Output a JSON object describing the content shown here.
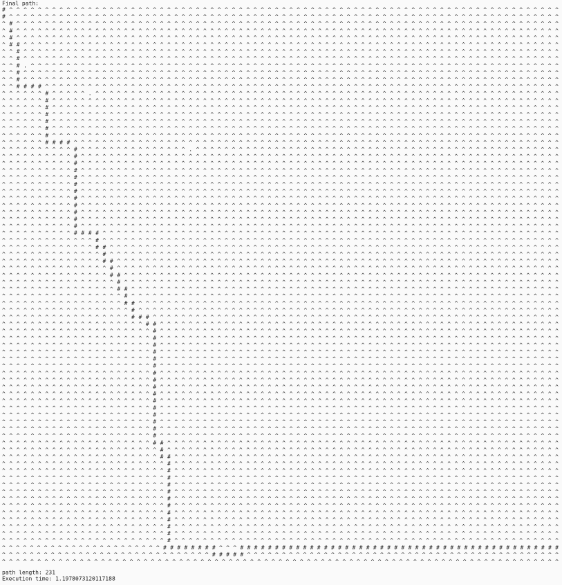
{
  "header": {
    "title": "Final path:"
  },
  "grid": {
    "rows": [
      "#^^^^^^^^^^^^^^^^^^^^^^^^^^^^^^^^^^^^^^^^^^^^^^^^^^^^^^^^^^^^^^^^^^^^^^^^^^^^^",
      "#^^^^^^^^^^^^^^^^^^^^^^^^^^^^^^^^^^^^^^^^^^^^^^^^^^^^^^^^^^^^^^^^^^^^^^^^^^^^^",
      "^#^^^^^^^^^^^^^^^^^^^^^^^^^^^^^^^^^^^^^^^^^^^^^^^^^^^^^^^^^^^^^^^^^^^^^^^^^^^^",
      "^#^^^^^^^^^^^^^^^^^^^^^^^^^^^^^^^^^^^^^^^^^^^^^^^^^^^^^^^^^^^^^^^^^^^^^^^^^^^^",
      "^#^^^^^^^^^^^^^^^^^^^^^^^^^^^^^^^^^^^^^^^^^^^^^^^^^^^^^^^^^^^^^^^^^^^^^^^^^^^^",
      "^##^^^^^^^^^^^^^^^^^^^^^^^^^^^^^^^^^^^^^^^^^^^^^^^^^^^^^^^^^^^^^^^^^^^^^^^^^^^",
      "^^#^^^^^^^^^^^^^^^^^^^^^^^^^^^^^^^^^^^^^^^^^^^^^^^^^^^^^^^^^^^^^^^^^^^^^^^^^^^",
      "^^#^^^^^^^^^^^^^^^^^^^^^^^^^^^^^^^^^^^^^^^^^^^^^^^^^^^^^^^^^^^^^^^^^^^^^^^^^^^",
      "^^#.^^^^^^^^^^^^^^^^^^^^^^^^^^^^^^^^^^^^^^^^^^^^^^^^^^^^^^^^^^^^^^^^^^^^^^^^^^",
      "^^#^^^^^^^^^^^^^^^^^^^^^^^^^^^^^^^^^^^^^^^^^^^^^^^^^^^^^^^^^^^^^^^^^^^^^^^^^^^",
      "^^#^^^^^^^^^^^^^^^^^^^^^^^^^^^^^^^^^^^^^^^^^^^^^^^^^^^^^^^^^^^^^^^^^^^^^^^^^^^",
      "^^####^^^^^^^^^^^^^^^^^^^^^^^^^^^^^^^^^^^^^^^^^^^^^^^^^^^^^^^^^^^^^^^^^^^^^^^^",
      "^^^^^^#^^^^^.^^^^^^^^^^^^^^^^^^^^^^^^^^^^^^^^^^^^^^^^^^^^^^^^^^^^^^^^^^^^^^^^^",
      "^^^^^^#^^^^^^^^^^^^^^^^^^^^^^^^^^^^^^^^^^^^^^^^^^^^^^^^^^^^^^^^^^^^^^^^^^^^^^^",
      "^^^^^^#^^^^^^^^^^^^^^^^^^^^^^^^^^^^^^^^^^^^^^^^^^^^^^^^^^^^^^^^^^^^^^^^^^^^^^^",
      "^^^^^^#^^^^^^^^^^^^^^^^^^^^^^^^^^^^^^^^^^^^^^^^^^^^^^^^^^^^^^^^^^^^^^^^^^^^^^^",
      "^^^^^^#^^^^^^^^^^^^^^^^^^^^^^^^^^^^^^^^^^^^^^^^^^^^^^^^^^^^^^^^^^^^^^^^^^^^^^^",
      "^^^^^^#^^^^^^^^^^^^^^^^^^^^^^^^^^^^^^^^^^^^^^^^^^^^^^^^^^^^^^^^^^^^^^^^^^^^^^^",
      "^^^^^^#^^^^^^^^^^^^^^^^^^^^^^^^^^^^^^^^^^^^^^^^^^^^^^^^^^^^^^^^^^^^^^^^^^^^^^^",
      "^^^^^^####^^^^^^^^^^^^^^^^^^^^^^^^^^^^^^^^^^^^^^^^^^^^^^^^^^^^^^^^^^^^^^^^^^^^",
      "^^^^^^^^^^#^^^^^^^^^^^^^^^.^^^^^^^^^^^^^^^^^^^^^^^^^^^^^^^^^^^^^^^^^^^^^^^^^^^",
      "^^^^^^^^^^#^^^^^^^^^^^^^^^^^^^^^^^^^^^^^^^^^^^^^^^^^^^^^^^^^^^^^^^^^^^^^^^^^^^",
      "^^^^^^^^^^#^^^^^^^^^^^^^^^^^^^^^^^^^^^^^^^^^^^^^^^^^^^^^^^^^^^^^^^^^^^^^^^^^^^",
      "^^^^^^^^^^#^^^^^^^^^^^^^^^^^^^^^^^^^^^^^^^^^^^^^^^^^^^^^^^^^^^^^^^^^^^^^^^^^^^",
      "^^^^^^^^^^#^^^^^^^^^^^^^^^^^^^^^^^^^^^^^^^^^^^^^^^^^^^^^^^^^^^^^^^^^^^^^^^^^^^",
      "^^^^^^^^^^#^^^^^^^^^^^^^^^^^^^^^^^^^^^^^^^^^^^^^^^^^^^^^^^^^^^^^^^^^^^^^^^^^^^",
      "^^^^^^^^^^#^^^^^^^^^^^^^^^^^^^^^^^^^^^^^^^^^^^^^^^^^^^^^^^^^^^^^^^^^^^^^^^^^^^",
      "^^^^^^^^^^#^^^^^^^^^^^^^^^^^^^^^^^^^^^^^^^^^^^^^^^^^^^^^^^^^^^^^^^^^^^^^^^^^^^",
      "^^^^^^^^^^#^^^^^^^^^^^^^^^^^^^^^^^^^^^^^^^^^^^^^^^^^^^^^^^^^^^^^^^^^^^^^^^^^^^",
      "^^^^^^^^^^#^^^^^^^^^^^^^^^^^^^^^^^^^^^^^^^^^^^^^^^^^^^^^^^^^^^^^^^^^^^^^^^^^^^",
      "^^^^^^^^^^#^^^^^^^^^^^^^^^^^^^^^^^^^^^^^^^^^^^^^^^^^^^^^^^^^^^^^^^^^^^^^^^^^^^",
      "^^^^^^^^^^#^^^^^^^^^^^^^^^^^^^^^^^^^^^^^^^^^^^^^^^^^^^^^^^^^^^^^^^^^^^^^^^^^^^",
      "^^^^^^^^^^####^^^^^^^^^^^^^^^^^^^^^^^^^^^^^^^^^^^^^^^^^^^^^^^^^^^^^^^^^^^^^^^^",
      "^^^^^^^^^^^^^#^^^^^^^^^^^^^^^^^^^^^^^^^^^^^^^^^^^^^^^^^^^^^^^^^^^^^^^^^^^^^^^^",
      "^^^^^^^^^^^^^##^^^^^^^^^^^^^^^^^^^^^^^^^^^^^^^^^^^^^^^^^^^^^^^^^^^^^^^^^^^^^^^",
      "^^^^^^^^^^^^^^#^^^^^^^^^^^^^^^^^^^^^^^^^^^^^^^^^^^^^^^^^^^^^^^^^^^^^^^^^^^^^^^",
      "^^^^^^^^^^^^^^##^^^^^^^^^^^^^^^^^^^^^^^^^^^^^^^^^^^^^^^^^^^^^^^^^^^^^^^^^^^^^^",
      "^^^^^^^^^^^^^^^#^^^^^^^^^^^^^^^^^^^^^^^^^^^^^^^^^^^^^^^^^^^^^^^^^^^^^^^^^^^^^^",
      "^^^^^^^^^^^^^^^##^^^^^^^^^^^^^^^^^^^^^^^^^^^^^^^^^^^^^^^^^^^^^^^^^^^^^^^^^^^^^",
      "^^^^^^^^^^^^^^^^#^^^^^^^^^^^^^^^^^^^^^^^^^^^^^^^^^^^^^^^^^^^^^^^^^^^^^^^^^^^^^",
      "^^^^^^^^^^^^^^^^##^^^^^^^^^^^^^^^^^^^^^^^^^^^^^^^^^^^^^^^^^^^^^^^^^^^^^^^^^^^^",
      "^^^^^^^^^^^^^^^^^#^^^^^^^^^^^^^^^^^^^^^^^^^^^^^^^^^^^^^^^^^^^^^^^^^^^^^^^^^^^^",
      "^^^^^^^^^^^^^^^^^##^^^^^^^^^^^^^^^^^^^^^^^^^^^^^^^^^^^^^^^^^^^^^^^^^^^^^^^^^^^",
      "^^^^^^^^^^^^^^^^^^#^^^^^^^^^^^^^^^^^^^^^^^^^^^^^^^^^^^^^^^^^^^^^^^^^^^^^^^^^^^",
      "^^^^^^^^^^^^^^^^^^###^^^^^^^^^^^^^^^^^^^^^^^^^^^^^^^^^^^^^^^^^^^^^^^^^^^^^^^^^",
      "^^^^^^^^^^^^^^^^^^^^##^^^^^^^^^^^^^^^^^^^^^^^^^^^^^^^^^^^^^^^^^^^^^^^^^^^^^^^^",
      "^^^^^^^^^^^^^^^^^^^^^#^^^^^^^^^^^^^^^^^^^^^^^^^^^^^^^^^^^^^^^^^^^^^^^^^^^^^^^^",
      "^^^^^^^^^^^^^^^^^^^^^#^^^^^^^^^^^^^^^^^^^^^^^^^^^^^^^^^^^^^^^^^^^^^^^^^^^^^^^^",
      "^^^^^^^^^^^^^^^^^^^^^#^^^^^^^^^^^^^^^^^^^^^^^^^^^^^^^^^^^^^^^^^^^^^^^^^^^^^^^^",
      "^^^^^^^^^^^^^^^^^^^^^#^^^^^^^^^^^^^^^^^^^^^^^^^^^^^^^^^^^^^^^^^^^^^^^^^^^^^^^^",
      "^^^^^^^^^^^^^^^^^^^^^#^^^^^^^^^^^^^^^^^^^^^^^^^^^^^^^^^^^^^^^^^^^^^^^^^^^^^^^^",
      "^^^^^^^^^^^^^^^^^^^^^#^^^^^^^^^^^^^^^^^^^^^^^^^^^^^^^^^^^^^^^^^^^^^^^^^^^^^^^^",
      "^^^^^^^^^^^^^^^^^^^^^#^^^^^^^^^^^^^^^^^^^^^^^^^^^^^^^^^^^^^^^^^^^^^^^^^^^^^^^^",
      "^^^^^^^^^^^^^^^^^^^^^#^^^^^^^^^^^^^^^^^^^^^^^^^^^^^^^^^^^^^^^^^^^^^^^^^^^^^^^^",
      "^^^^^^^^^^^^^^^^^^^^^#^^^^^^^^^^^^^^^^^^^^^^^^^^^^^^^^^^^^^^^^^^^^^^^^^^^^^^^^",
      "^^^^^^^^^^^^^^^^^^^^^#^^^^^^^^^^^^^^^^^^^^^^^^^^^^^^^^^^^^^^^^^^^^^^^^^^^^^^^^",
      "^^^^^^^^^^^^^^^^^^^^^#^^^^^^^^^^^^^^^^^^^^^^^^^^^^^^^^^^^^^^^^^^^^^^^^^^^^^^^^",
      "^^^^^^^^^^^^^^^^^^^^^#^^^^^^^^^^^^^^^^^^^^^^^^^^^^^^^^^^^^^^^^^^^^^^^^^^^^^^^^",
      "^^^^^^^^^^^^^^^^^^^^^#^^^^^^^^^^^^^^^^^^^^^^^^^^^^^^^^^^^^^^^^^^^^^^^^^^^^^^^^",
      "^^^^^^^^^^^^^^^^^^^^^#^^^^^^^^^^^^^^^^^^^^^^^^^^^^^^^^^^^^^^^^^^^^^^^^^^^^^^^^",
      "^^^^^^^^^^^^^^^^^^^^^#^^^^^^^^^^^^^^^^^^^^^^^^^^^^^^^^^^^^^^^^^^^^^^^^^^^^^^^^",
      "^^^^^^^^^^^^^^^^^^^^^#^^^^^^^^^^^^^^^^^^^^^^^^^^^^^^^^^^^^^^^^^^^^^^^^^^^^^^^^",
      "^^^^^^^^^^^^^^^^^^^^^##^^^^^^^^^^^^^^^^^^^^^^^^^^^^^^^^^^^^^^^^^^^^^^^^^^^^^^^",
      "^^^^^^^^^^^^^^^^^^^^^^#^^^^^^^^^^^^^^^^^^^^^^^^^^^^^^^^^^^^^^^^^^^^^^^^^^^^^^^",
      "^^^^^^^^^^^^^^^^^^^^^^##^^^^^^^^^^^^^^^^^^^^^^^^^^^^^^^^^^^^^^^^^^^^^^^^^^^^^^",
      "^^^^^^^^^^^^^^^^^^^^^^^#^^^^^^^^^^^^^^^^^^^^^^^^^^^^^^^^^^^^^^^^^^^^^^^^^^^^^^",
      "^^^^^^^^^^^^^^^^^^^^^^^#^^^^^^^^^^^^^^^^^^^^^^^^^^^^^^^^^^^^^^^^^^^^^^^^^^^^^^",
      "^^^^^^^^^^^^^^^^^^^^^^^#^^^^^^^^^^^^^^^^^^^^^^^^^^^^^^^^^^^^^^^^^^^^^^^^^^^^^^",
      "^^^^^^^^^^^^^^^^^^^^^^^#^^^^^^^^^^^^^^^^^^^^^^^^^^^^^^^^^^^^^^^^^^^^^^^^^^^^^^",
      "^^^^^^^^^^^^^^^^^^^^^^^#^^^^^^^^^^^^^^^^^^^^^^^^^^^^^^^^^^^^^^^^^^^^^^^^^^^^^^",
      "^^^^^^^^^^^^^^^^^^^^^^^#^^^^^^^^^^^^^^^^^^^^^^^^^^^^^^^^^^^^^^^^^^^^^^^^^^^^^^",
      "^^^^^^^^^^^^^^^^^^^^^^^#^^^^^^^^^^^^^^^^^^^^^^^^^^^^^^^^^^^^^^^^^^^^^^^^^^^^^^",
      "^^^^^^^^^^^^^^^^^^^^^^^#^^^^^^^^^^^^^^^^^^^^^^^^^^^^^^^^^^^^^^^^^^^^^^^^^^^^^^",
      "^^^^^^^^^^^^^^^^^^^^^^^#^^^^^^^^^^^^^^^^^^^^^^^^^^^^^^^^^^^^^^^^^^^^^^^^^^^^^^",
      "^^^^^^^^^^^^^^^^^^^^^^^#^^^^^^^^^^^^^^^^^^^^^^^^^^^^^^^^^^^^^^^^^^^^^^^^^^^^^^",
      "^^^^^^^^^^^^^^^^^^^^^^^#^^^^^^^^^^^^^^^^^^^^^^^^^^^^^^^^^^^^^^^^^^^^^^^^^^^^^^",
      "^^^^^^^^^^^^^^^^^^^^^^^#^^^^^^^^^^^^^^^^^^^^^^^^^^^^^^^^^^^^^^^^^^^^^^^^^^^^^^",
      "^^^^^^^^^^^^^^^^^^^^^^^########^^^##############################################",
      "^^^^^^^^^^^^^^^^^^^^^^^^^^^^^^#####^^^^^^^^^^^^^^^^^^^^^^^^^^^^^^^^^^^^^^^^^^^^^",
      "^^^^^^^^^^^^^^^^^^^^^^^^^^^^^^^^^^^^^^^^^^^^^^^^^^^^^^^^^^^^^^^^^^^^^^^^^^^^^^^"
    ]
  },
  "footer": {
    "path_length": "path length: 231",
    "execution_time": "Execution time: 1.1978073120117188"
  }
}
